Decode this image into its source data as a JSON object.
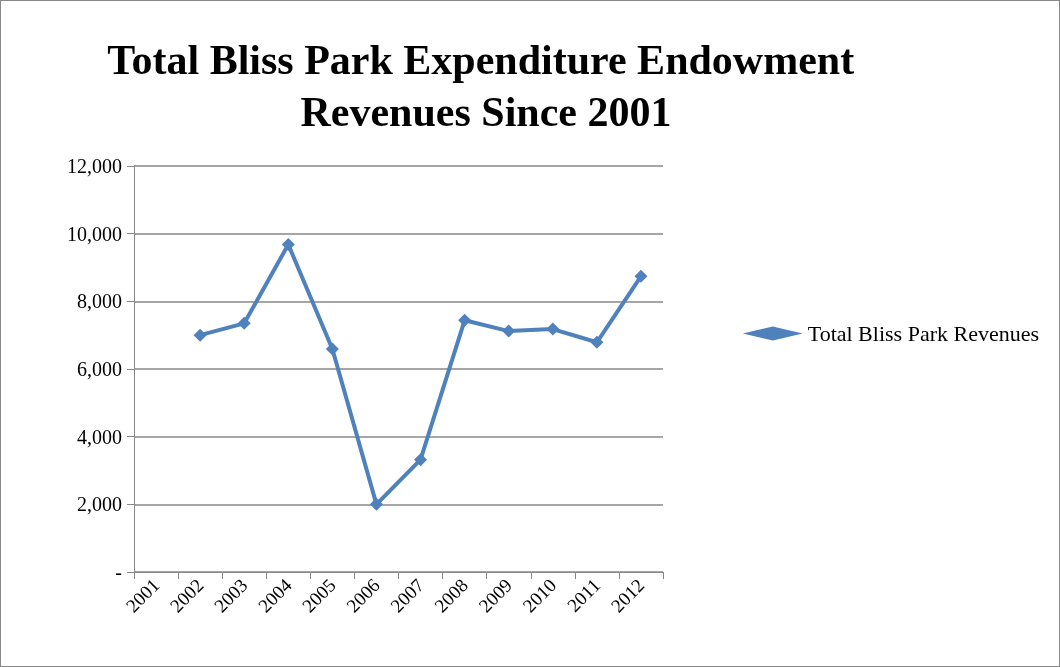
{
  "chart_data": {
    "type": "line",
    "title": "Total Bliss Park Expenditure Endowment Revenues Since 2001",
    "categories": [
      "2001",
      "2002",
      "2003",
      "2004",
      "2005",
      "2006",
      "2007",
      "2008",
      "2009",
      "2010",
      "2011",
      "2012"
    ],
    "series": [
      {
        "name": "Total Bliss Park Revenues",
        "color": "#4f81bd",
        "values": [
          null,
          7000,
          7350,
          9680,
          6590,
          2000,
          3320,
          7440,
          7120,
          7180,
          6790,
          8740
        ]
      }
    ],
    "ylim": [
      0,
      12000
    ],
    "yticks": [
      {
        "value": 0,
        "label": "-"
      },
      {
        "value": 2000,
        "label": "2,000"
      },
      {
        "value": 4000,
        "label": "4,000"
      },
      {
        "value": 6000,
        "label": "6,000"
      },
      {
        "value": 8000,
        "label": "8,000"
      },
      {
        "value": 10000,
        "label": "10,000"
      },
      {
        "value": 12000,
        "label": "12,000"
      }
    ],
    "grid": "y",
    "legend": "right",
    "marker": "diamond",
    "line_style": "solid"
  }
}
